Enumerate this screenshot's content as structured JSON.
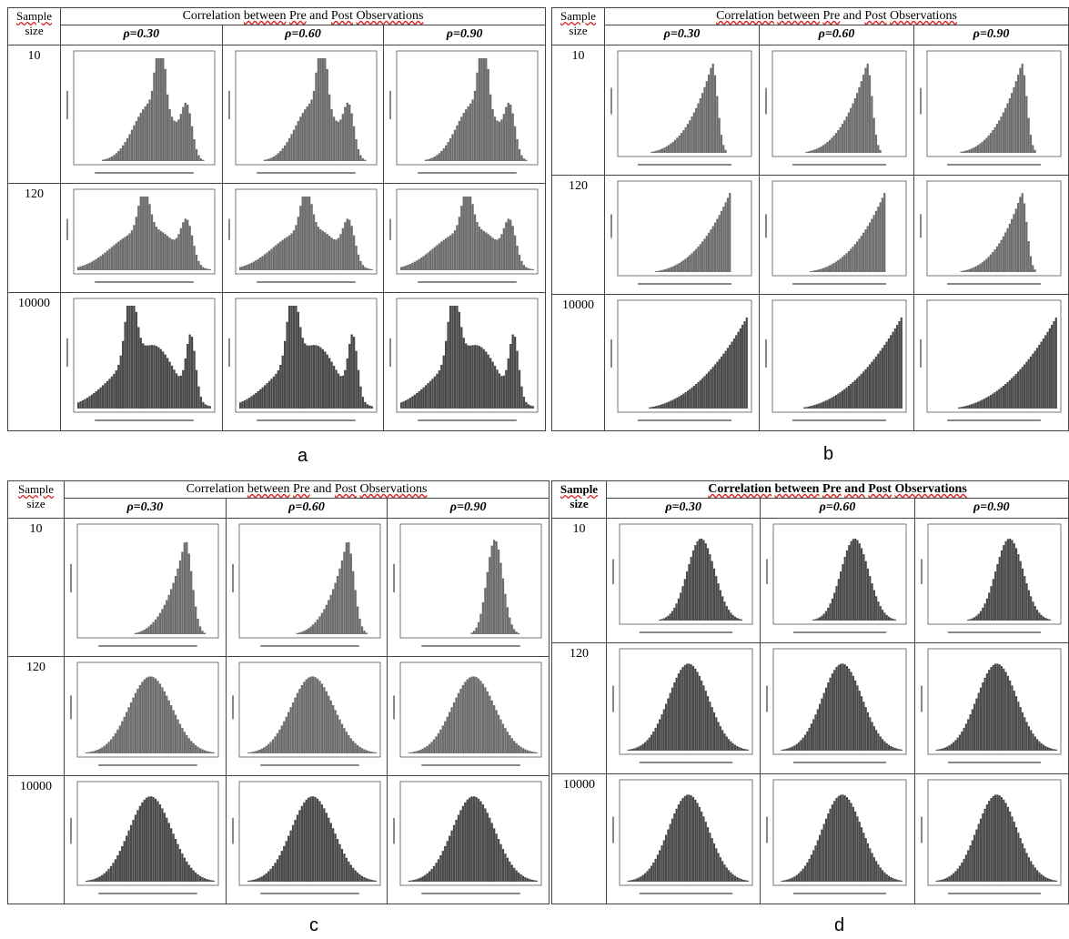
{
  "panels": [
    {
      "id": "a",
      "label": "a",
      "sample_label": [
        "Sample",
        "size"
      ],
      "title_words": [
        "Correlation",
        "between",
        "Pre",
        "and",
        "Post",
        "Observations"
      ],
      "columns": [
        "ρ=0.30",
        "ρ=0.60",
        "ρ=0.90"
      ],
      "rows": [
        "10",
        "120",
        "10000"
      ],
      "shapes": [
        [
          "bimodalA",
          "bimodalA",
          "bimodalA"
        ],
        [
          "bimodalB",
          "bimodalB",
          "bimodalB"
        ],
        [
          "bimodalC",
          "bimodalC",
          "bimodalC"
        ]
      ]
    },
    {
      "id": "b",
      "label": "b",
      "sample_label": [
        "Sample",
        "size"
      ],
      "title_words": [
        "Correlation",
        "between",
        "Pre",
        "and",
        "Post",
        "Observations"
      ],
      "columns": [
        "ρ=0.30",
        "ρ=0.60",
        "ρ=0.90"
      ],
      "rows": [
        "10",
        "120",
        "10000"
      ],
      "shapes": [
        [
          "skewPeak",
          "skewPeak",
          "skewPeak"
        ],
        [
          "skewEdge",
          "skewEdge",
          "skewPeak"
        ],
        [
          "rampUp",
          "rampUp",
          "rampUp"
        ]
      ]
    },
    {
      "id": "c",
      "label": "c",
      "sample_label": [
        "Sample",
        "size"
      ],
      "title_words": [
        "Correlation",
        "between",
        "Pre",
        "and",
        "Post",
        "Observations"
      ],
      "columns": [
        "ρ=0.30",
        "ρ=0.60",
        "ρ=0.90"
      ],
      "rows": [
        "10",
        "120",
        "10000"
      ],
      "shapes": [
        [
          "leftSkew",
          "leftSkew",
          "narrowPeak"
        ],
        [
          "normal",
          "normal",
          "normal"
        ],
        [
          "normal",
          "normal",
          "normal"
        ]
      ]
    },
    {
      "id": "d",
      "label": "d",
      "sample_label": [
        "Sample",
        "size"
      ],
      "title_words": [
        "Correlation",
        "between",
        "Pre",
        "and",
        "Post",
        "Observations"
      ],
      "columns": [
        "ρ=0.30",
        "ρ=0.60",
        "ρ=0.90"
      ],
      "rows": [
        "10",
        "120",
        "10000"
      ],
      "shapes": [
        [
          "normalRight",
          "normalRight",
          "normalRight"
        ],
        [
          "normal",
          "normal",
          "normal"
        ],
        [
          "normal",
          "normal",
          "normal"
        ]
      ]
    }
  ],
  "colors": {
    "bar": "#6d6d6d",
    "bar_dark": "#4a4a4a",
    "axis": "#555555",
    "grid_border": "#444444"
  }
}
